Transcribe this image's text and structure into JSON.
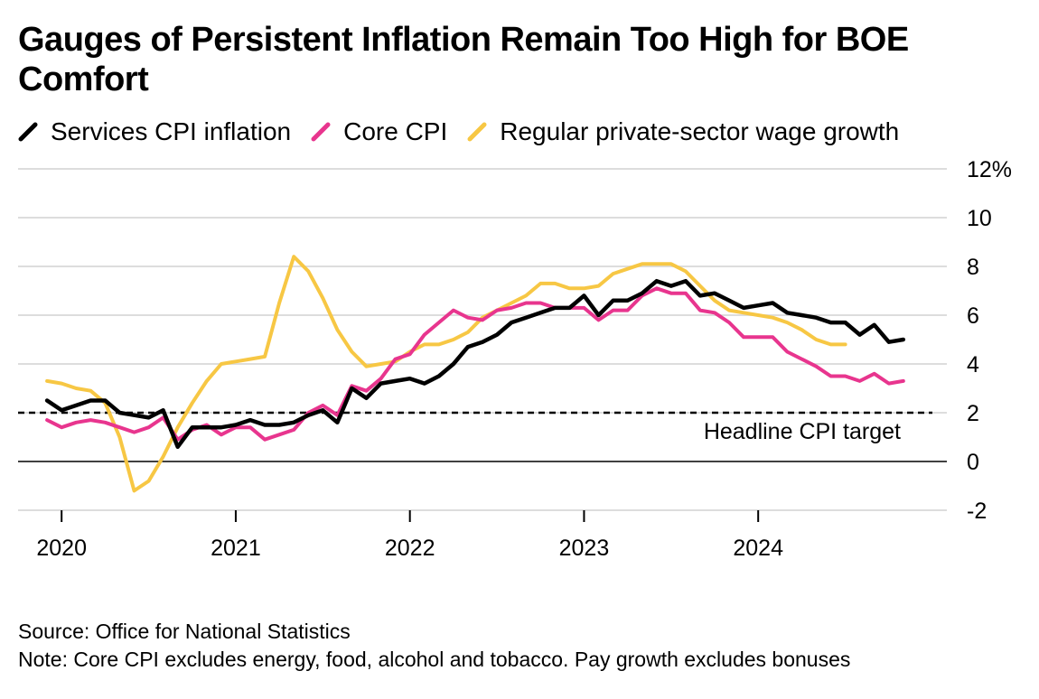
{
  "title": "Gauges of Persistent Inflation Remain Too High for BOE Comfort",
  "source": "Source: Office for National Statistics",
  "note": "Note: Core CPI excludes energy, food, alcohol and tobacco. Pay growth excludes bonuses",
  "colors": {
    "services": "#000000",
    "core": "#e8358e",
    "wages": "#f7c744",
    "grid": "#dddddd"
  },
  "chart_data": {
    "type": "line",
    "title": "Gauges of Persistent Inflation Remain Too High for BOE Comfort",
    "xlabel": "",
    "ylabel": "",
    "x_start": "2019-12",
    "x_end": "2024-10",
    "xlim": [
      "2019-10",
      "2025-02"
    ],
    "ylim": [
      -2,
      12
    ],
    "y_ticks": [
      -2,
      0,
      2,
      4,
      6,
      8,
      10,
      12
    ],
    "y_tick_labels": [
      "-2",
      "0",
      "2",
      "4",
      "6",
      "8",
      "10",
      "12%"
    ],
    "x_ticks": [
      "2020",
      "2021",
      "2022",
      "2023",
      "2024"
    ],
    "grid": true,
    "legend_position": "top-left",
    "reference_line": {
      "value": 2,
      "label": "Headline CPI target",
      "style": "dashed"
    },
    "series": [
      {
        "name": "Services CPI inflation",
        "color": "#000000",
        "values": [
          2.5,
          2.1,
          2.3,
          2.5,
          2.5,
          2.0,
          1.9,
          1.8,
          2.1,
          0.6,
          1.4,
          1.4,
          1.4,
          1.5,
          1.7,
          1.5,
          1.5,
          1.6,
          1.9,
          2.1,
          1.6,
          3.0,
          2.6,
          3.2,
          3.3,
          3.4,
          3.2,
          3.5,
          4.0,
          4.7,
          4.9,
          5.2,
          5.7,
          5.9,
          6.1,
          6.3,
          6.3,
          6.8,
          6.0,
          6.6,
          6.6,
          6.9,
          7.4,
          7.2,
          7.4,
          6.8,
          6.9,
          6.6,
          6.3,
          6.4,
          6.5,
          6.1,
          6.0,
          5.9,
          5.7,
          5.7,
          5.2,
          5.6,
          4.9,
          5.0
        ]
      },
      {
        "name": "Core CPI",
        "color": "#e8358e",
        "values": [
          1.7,
          1.4,
          1.6,
          1.7,
          1.6,
          1.4,
          1.2,
          1.4,
          1.8,
          0.9,
          1.3,
          1.5,
          1.1,
          1.4,
          1.4,
          0.9,
          1.1,
          1.3,
          2.0,
          2.3,
          1.9,
          3.1,
          2.9,
          3.4,
          4.2,
          4.4,
          5.2,
          5.7,
          6.2,
          5.9,
          5.8,
          6.2,
          6.3,
          6.5,
          6.5,
          6.3,
          6.3,
          6.3,
          5.8,
          6.2,
          6.2,
          6.8,
          7.1,
          6.9,
          6.9,
          6.2,
          6.1,
          5.7,
          5.1,
          5.1,
          5.1,
          4.5,
          4.2,
          3.9,
          3.5,
          3.5,
          3.3,
          3.6,
          3.2,
          3.3
        ]
      },
      {
        "name": "Regular private-sector wage growth",
        "color": "#f7c744",
        "values": [
          3.3,
          3.2,
          3.0,
          2.9,
          2.4,
          1.0,
          -1.2,
          -0.8,
          0.2,
          1.4,
          2.4,
          3.3,
          4.0,
          4.1,
          4.2,
          4.3,
          6.5,
          8.4,
          7.8,
          6.7,
          5.4,
          4.5,
          3.9,
          4.0,
          4.1,
          4.5,
          4.8,
          4.8,
          5.0,
          5.3,
          5.9,
          6.2,
          6.5,
          6.8,
          7.3,
          7.3,
          7.1,
          7.1,
          7.2,
          7.7,
          7.9,
          8.1,
          8.1,
          8.1,
          7.8,
          7.2,
          6.6,
          6.2,
          6.1,
          6.0,
          5.9,
          5.7,
          5.4,
          5.0,
          4.8,
          4.8
        ]
      }
    ]
  }
}
